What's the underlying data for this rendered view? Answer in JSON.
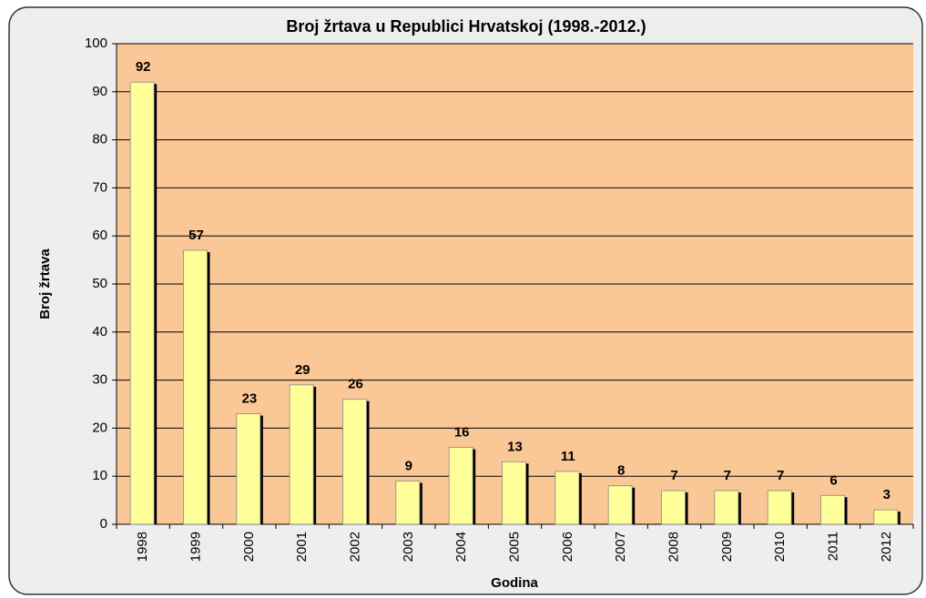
{
  "chart_data": {
    "type": "bar",
    "title": "Broj žrtava u Republici Hrvatskoj (1998.-2012.)",
    "x_label": "Godina",
    "y_label": "Broj žrtava",
    "categories": [
      "1998",
      "1999",
      "2000",
      "2001",
      "2002",
      "2003",
      "2004",
      "2005",
      "2006",
      "2007",
      "2008",
      "2009",
      "2010",
      "2011",
      "2012"
    ],
    "values": [
      92,
      57,
      23,
      29,
      26,
      9,
      16,
      13,
      11,
      8,
      7,
      7,
      7,
      6,
      3
    ],
    "color": "#ffff99",
    "ylim": [
      0,
      100
    ],
    "yticks": [
      0,
      10,
      20,
      30,
      40,
      50,
      60,
      70,
      80,
      90,
      100
    ],
    "grid": true
  }
}
